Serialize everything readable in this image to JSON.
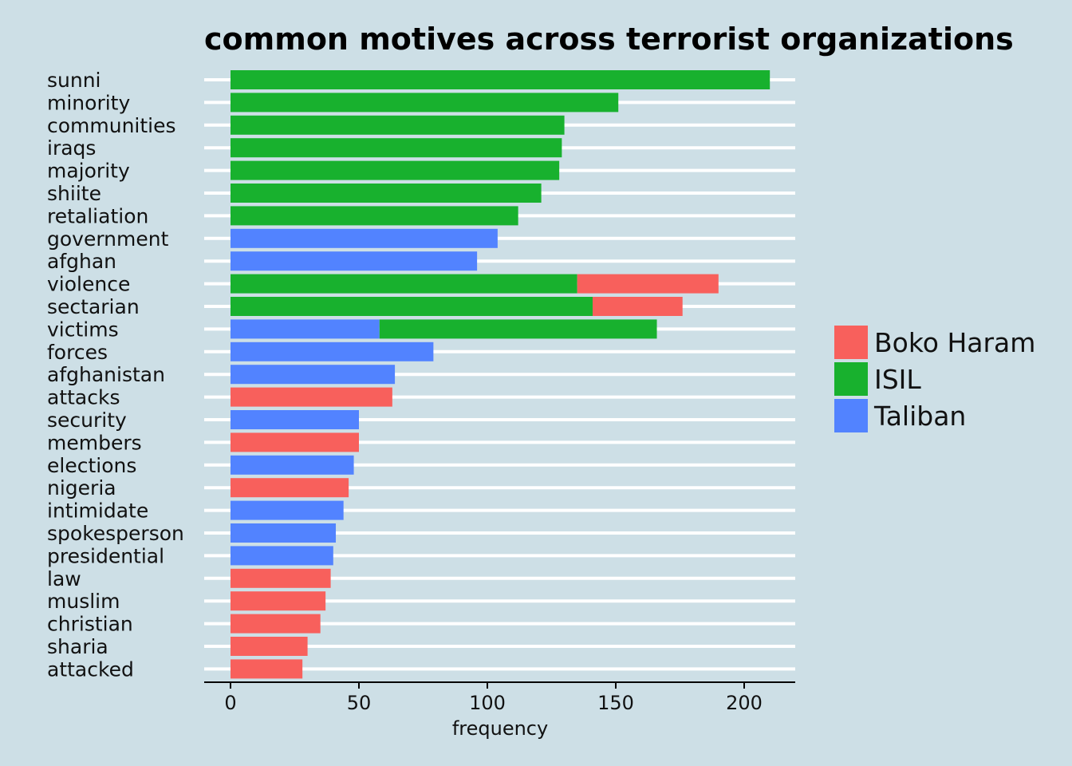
{
  "chart_data": {
    "type": "bar",
    "orientation": "horizontal",
    "stacked": true,
    "title": "common motives across terrorist organizations",
    "xlabel": "frequency",
    "ylabel": "",
    "xlim": [
      -10,
      220
    ],
    "xticks": [
      0,
      50,
      100,
      150,
      200
    ],
    "grid": "horizontal major gridlines (white)",
    "legend_position": "right",
    "categories": [
      "sunni",
      "minority",
      "communities",
      "iraqs",
      "majority",
      "shiite",
      "retaliation",
      "government",
      "afghan",
      "violence",
      "sectarian",
      "victims",
      "forces",
      "afghanistan",
      "attacks",
      "security",
      "members",
      "elections",
      "nigeria",
      "intimidate",
      "spokesperson",
      "presidential",
      "law",
      "muslim",
      "christian",
      "sharia",
      "attacked"
    ],
    "stack_order": [
      "Taliban",
      "ISIL",
      "Boko Haram"
    ],
    "series": [
      {
        "name": "Boko Haram",
        "color": "#f8605c",
        "values": [
          0,
          0,
          0,
          0,
          0,
          0,
          0,
          0,
          0,
          55,
          35,
          0,
          0,
          0,
          63,
          0,
          50,
          0,
          46,
          0,
          0,
          0,
          39,
          37,
          35,
          30,
          28
        ]
      },
      {
        "name": "ISIL",
        "color": "#18b12e",
        "values": [
          210,
          151,
          130,
          129,
          128,
          121,
          112,
          0,
          0,
          135,
          141,
          108,
          0,
          0,
          0,
          0,
          0,
          0,
          0,
          0,
          0,
          0,
          0,
          0,
          0,
          0,
          0
        ]
      },
      {
        "name": "Taliban",
        "color": "#5283ff",
        "values": [
          0,
          0,
          0,
          0,
          0,
          0,
          0,
          104,
          96,
          0,
          0,
          58,
          79,
          64,
          0,
          50,
          0,
          48,
          0,
          44,
          41,
          40,
          0,
          0,
          0,
          0,
          0
        ]
      }
    ]
  }
}
